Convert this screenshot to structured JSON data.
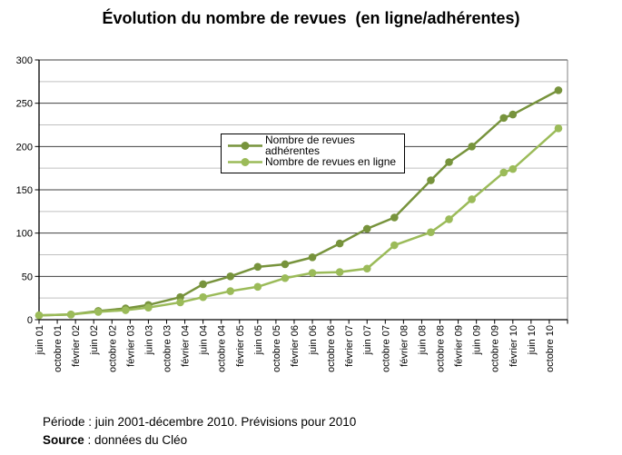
{
  "title": "Évolution du nombre de revues  (en ligne/adhérentes)",
  "legend": {
    "items": [
      {
        "label": "Nombre de revues adhérentes",
        "color": "#77933C"
      },
      {
        "label": "Nombre de revues en ligne",
        "color": "#9BBB59"
      }
    ]
  },
  "footer": {
    "periode": "Période : juin 2001-décembre 2010. Prévisions pour 2010",
    "source_label": "Source",
    "source_text": " : données du Cléo"
  },
  "chart_data": {
    "type": "line",
    "title": "Évolution du nombre de revues (en ligne/adhérentes)",
    "x_axis": {
      "unit": "months since juin 2001",
      "tick_interval_months": 4,
      "range_months": [
        0,
        116
      ],
      "tick_labels": [
        "juin 01",
        "octobre 01",
        "février 02",
        "juin 02",
        "octobre 02",
        "février 03",
        "juin 03",
        "octobre 03",
        "février 04",
        "juin 04",
        "octobre 04",
        "février 05",
        "juin 05",
        "octobre 05",
        "février 06",
        "juin 06",
        "octobre 06",
        "février 07",
        "juin 07",
        "octobre 07",
        "février 08",
        "juin 08",
        "octobre 08",
        "février 09",
        "juin 09",
        "octobre 09",
        "février 10",
        "juin 10",
        "octobre 10"
      ]
    },
    "y_axis": {
      "range": [
        0,
        300
      ],
      "major_ticks": [
        0,
        50,
        100,
        150,
        200,
        250,
        300
      ],
      "minor_interval": 25
    },
    "grid": {
      "horizontal_major": true,
      "horizontal_minor": true,
      "vertical": false
    },
    "legend_position": "inside-upper-middle",
    "series": [
      {
        "name": "Nombre de revues adhérentes",
        "color": "#77933C",
        "x_months_since_juin_2001": [
          0,
          7,
          13,
          19,
          24,
          31,
          36,
          42,
          48,
          54,
          60,
          66,
          72,
          78,
          86,
          90,
          95,
          102,
          104,
          114
        ],
        "values": [
          5,
          6,
          10,
          13,
          17,
          26,
          41,
          50,
          61,
          64,
          72,
          88,
          105,
          118,
          161,
          182,
          200,
          233,
          237,
          265
        ]
      },
      {
        "name": "Nombre de revues en ligne",
        "color": "#9BBB59",
        "x_months_since_juin_2001": [
          0,
          7,
          13,
          19,
          24,
          31,
          36,
          42,
          48,
          54,
          60,
          66,
          72,
          78,
          86,
          90,
          95,
          102,
          104,
          114
        ],
        "values": [
          5,
          6,
          9,
          11,
          14,
          20,
          26,
          33,
          38,
          48,
          54,
          55,
          59,
          86,
          101,
          116,
          139,
          170,
          174,
          221
        ]
      }
    ]
  }
}
